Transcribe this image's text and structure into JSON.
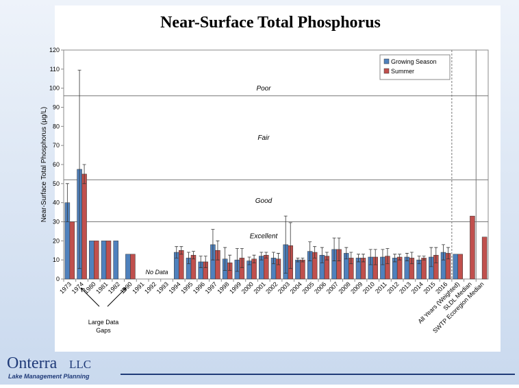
{
  "chart_data": {
    "type": "bar",
    "title": "Near-Surface Total Phosphorus",
    "y_label": "Near-Surface Total Phosphorus (µg/L)",
    "categories": [
      "1973",
      "1974",
      "1980",
      "1981",
      "1982",
      "1990",
      "1991",
      "1992",
      "1993",
      "1994",
      "1995",
      "1996",
      "1997",
      "1998",
      "1999",
      "2000",
      "2001",
      "2002",
      "2003",
      "2004",
      "2005",
      "2006",
      "2007",
      "2008",
      "2009",
      "2010",
      "2011",
      "2012",
      "2013",
      "2014",
      "2015",
      "2016",
      "All Years (Weighted)",
      "SLDL Median",
      "SWTP Ecoregion Median"
    ],
    "series": [
      {
        "name": "Growing Season",
        "color": "#4f81bd",
        "values": [
          40,
          57.5,
          20,
          20,
          20,
          13,
          null,
          null,
          null,
          14,
          11,
          9,
          18,
          10.5,
          10,
          9.5,
          12,
          11,
          18,
          10,
          14.5,
          12.5,
          15.5,
          13.5,
          11,
          11.5,
          11.5,
          11,
          11.5,
          10,
          11.5,
          14,
          13,
          null,
          null
        ],
        "errors": [
          10,
          52,
          null,
          null,
          null,
          null,
          null,
          null,
          null,
          3,
          3,
          3,
          8,
          6,
          6,
          2,
          2,
          3,
          15,
          1,
          5,
          4,
          6,
          3,
          2,
          4,
          4,
          2,
          2,
          2,
          5,
          4,
          null,
          null,
          null
        ]
      },
      {
        "name": "Summer",
        "color": "#c0504d",
        "values": [
          30,
          55,
          20,
          20,
          null,
          13,
          null,
          null,
          null,
          15,
          12.5,
          9,
          15,
          8.5,
          11,
          10.5,
          12.5,
          10.5,
          17.5,
          10,
          14,
          12,
          15.5,
          11,
          11,
          11.5,
          12,
          11.5,
          11,
          11,
          12.5,
          13.5,
          13,
          33,
          22
        ],
        "errors": [
          null,
          5,
          null,
          null,
          null,
          null,
          null,
          null,
          null,
          2,
          2,
          3,
          5,
          4,
          5,
          2,
          1.5,
          3,
          12,
          1,
          3,
          2,
          6,
          3,
          2,
          4,
          4,
          1.5,
          3,
          1,
          4,
          3,
          null,
          null,
          null
        ]
      }
    ],
    "ylim": [
      0,
      120
    ],
    "yticks": [
      0,
      10,
      20,
      30,
      40,
      50,
      60,
      70,
      80,
      90,
      100,
      110,
      120
    ],
    "legend": "top-right",
    "zones": [
      {
        "name": "Excellent",
        "max": 30
      },
      {
        "name": "Good",
        "max": 52
      },
      {
        "name": "Fair",
        "max": 96
      },
      {
        "name": "Poor"
      }
    ],
    "annotations": {
      "no_data": "No Data",
      "gaps": [
        "Large Data",
        "Gaps"
      ]
    }
  },
  "footer": {
    "company": "Onterra",
    "suffix": "LLC",
    "tagline": "Lake Management Planning"
  }
}
